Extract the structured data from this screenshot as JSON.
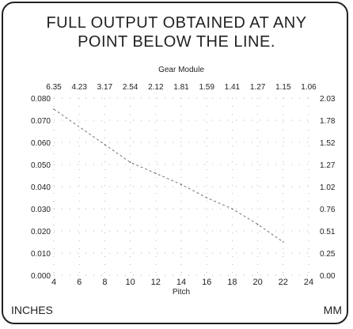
{
  "title_lines": [
    "FULL OUTPUT OBTAINED AT ANY",
    "POINT BELOW THE LINE."
  ],
  "corner_left": "INCHES",
  "corner_right": "MM",
  "chart_data": {
    "type": "line",
    "title": "FULL OUTPUT OBTAINED AT ANY POINT BELOW THE LINE.",
    "xlabel": "Pitch",
    "ylabel_left": "INCHES",
    "ylabel_right": "MM",
    "top_axis_label": "Gear Module",
    "xlim": [
      4,
      24
    ],
    "ylim": [
      0,
      0.08
    ],
    "x_ticks": [
      "4",
      "6",
      "8",
      "10",
      "12",
      "14",
      "16",
      "18",
      "20",
      "22",
      "24"
    ],
    "y_ticks_left": [
      "0.000",
      "0.010",
      "0.020",
      "0.030",
      "0.040",
      "0.050",
      "0.060",
      "0.070",
      "0.080"
    ],
    "y_ticks_right": [
      "0.00",
      "0.25",
      "0.51",
      "0.76",
      "1.02",
      "1.27",
      "1.52",
      "1.78",
      "2.03"
    ],
    "top_ticks": [
      "6.35",
      "4.23",
      "3.17",
      "2.54",
      "2.12",
      "1.81",
      "1.59",
      "1.41",
      "1.27",
      "1.15",
      "1.06"
    ],
    "grid": true,
    "series": [
      {
        "x": [
          4,
          8,
          10,
          12,
          14,
          16,
          18,
          20,
          22
        ],
        "y": [
          0.075,
          0.059,
          0.051,
          0.046,
          0.041,
          0.035,
          0.03,
          0.023,
          0.015
        ]
      }
    ]
  }
}
